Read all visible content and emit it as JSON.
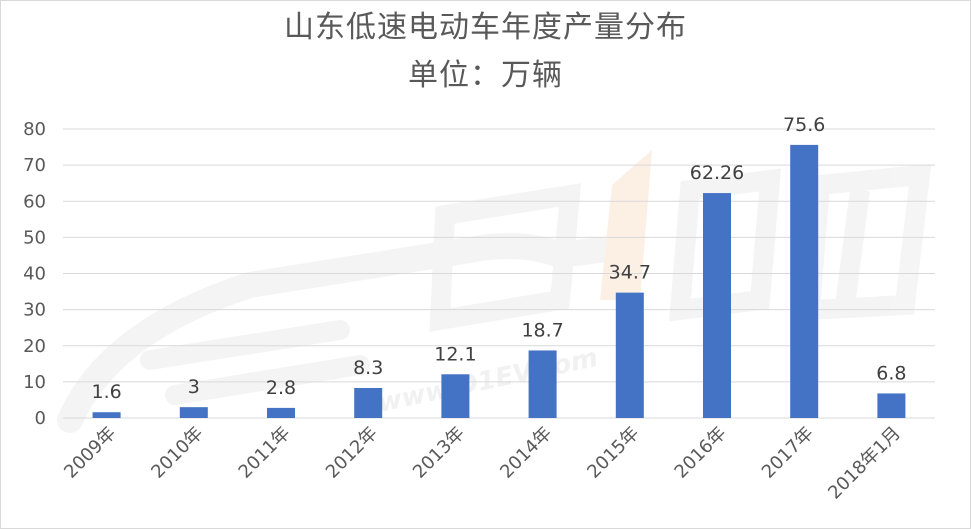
{
  "chart_data": {
    "type": "bar",
    "title": "山东低速电动车年度产量分布",
    "subtitle": "单位：万辆",
    "categories": [
      "2009年",
      "2010年",
      "2011年",
      "2012年",
      "2013年",
      "2014年",
      "2015年",
      "2016年",
      "2017年",
      "2018年1月"
    ],
    "values": [
      1.6,
      3,
      2.8,
      8.3,
      12.1,
      18.7,
      34.7,
      62.26,
      75.6,
      6.8
    ],
    "value_labels": [
      "1.6",
      "3",
      "2.8",
      "8.3",
      "12.1",
      "18.7",
      "34.7",
      "62.26",
      "75.6",
      "6.8"
    ],
    "ylim": [
      0,
      80
    ],
    "yticks": [
      0,
      10,
      20,
      30,
      40,
      50,
      60,
      70,
      80
    ],
    "grid": true,
    "legend": "none",
    "bar_color": "#4472c4",
    "watermark_color": "#fbe3cf",
    "watermark_text": "www.D1EV.com"
  }
}
